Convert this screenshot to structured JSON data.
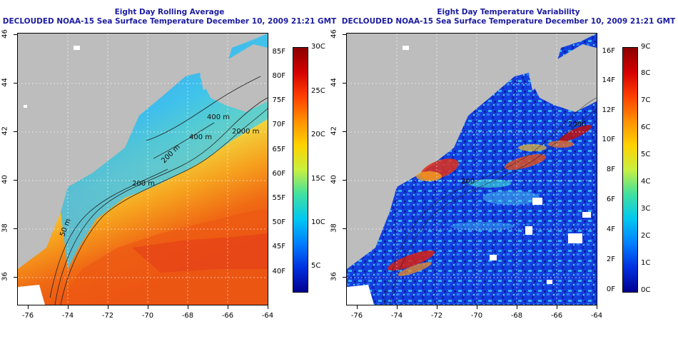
{
  "left_panel": {
    "title_line1": "Eight Day Rolling Average",
    "title_line2": "DECLOUDED NOAA-15 Sea Surface Temperature December 10, 2009 21:21 GMT",
    "contour_labels": [
      "400 m",
      "2000 m",
      "400 m",
      "200 m",
      "50 m",
      "200 m"
    ],
    "colorbar": {
      "fahrenheit_labels": [
        "85F",
        "80F",
        "75F",
        "70F",
        "65F",
        "60F",
        "55F",
        "50F",
        "45F",
        "40F"
      ],
      "celsius_labels": [
        "30C",
        "25C",
        "20C",
        "15C",
        "10C",
        "5C"
      ]
    }
  },
  "right_panel": {
    "title_line1": "Eight Day Temperature Variability",
    "title_line2": "DECLOUDED NOAA-15 Sea Surface Temperature December 10, 2009 21:21 GMT",
    "contour_labels": [
      "2000",
      "200"
    ],
    "colorbar": {
      "fahrenheit_labels": [
        "16F",
        "14F",
        "12F",
        "10F",
        "8F",
        "6F",
        "4F",
        "2F",
        "0F"
      ],
      "celsius_labels": [
        "9C",
        "8C",
        "7C",
        "6C",
        "5C",
        "4C",
        "3C",
        "2C",
        "1C",
        "0C"
      ]
    }
  },
  "axes": {
    "lat_labels": [
      "46",
      "44",
      "42",
      "40",
      "38",
      "36"
    ],
    "lon_labels": [
      "-76",
      "-74",
      "-72",
      "-70",
      "-68",
      "-66",
      "-64"
    ]
  },
  "colors": {
    "title": "#1c1ca0",
    "land": "#bdbdbd",
    "cloud": "#ffffff"
  }
}
